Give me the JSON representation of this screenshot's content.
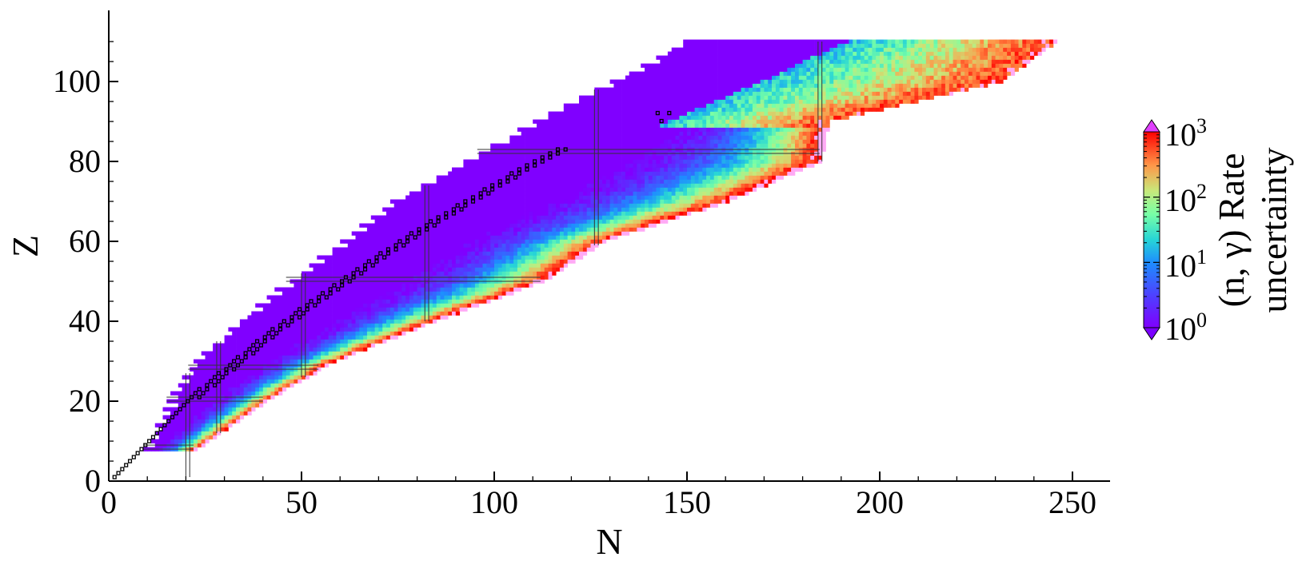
{
  "chart_data": {
    "type": "heatmap",
    "title": "",
    "xlabel": "N",
    "ylabel": "Z",
    "xlim": [
      0,
      260
    ],
    "ylim": [
      0,
      113
    ],
    "xticks": [
      0,
      50,
      100,
      150,
      200,
      250
    ],
    "yticks": [
      0,
      20,
      40,
      60,
      80,
      100
    ],
    "x_tick_labels": [
      "0",
      "50",
      "100",
      "150",
      "200",
      "250"
    ],
    "y_tick_labels": [
      "0",
      "20",
      "40",
      "60",
      "80",
      "100"
    ],
    "colorbar": {
      "label_line1": "(n, γ) Rate",
      "label_line2": "uncertainty",
      "scale": "log",
      "range": [
        1,
        1000
      ],
      "tick_labels": [
        "10",
        "0",
        "10",
        "1",
        "10",
        "2",
        "10",
        "3"
      ],
      "ticks": [
        1,
        10,
        100,
        1000
      ],
      "over_color": "#e040ff",
      "under_color": "#7a00ff",
      "colormap": "rainbow"
    },
    "colors": {
      "low": "#8000ff",
      "mid": "#26d4d8",
      "high": "#ff0000",
      "outside_range": "#ffaaf5"
    },
    "magic_numbers": [
      8,
      20,
      28,
      50,
      82,
      126,
      184
    ],
    "nuclear_landscape": {
      "boundary_rows": [
        {
          "Z": 8,
          "N_min": 9,
          "N_max": 22
        },
        {
          "Z": 20,
          "N_min": 15,
          "N_max": 40
        },
        {
          "Z": 30,
          "N_min": 22,
          "N_max": 58
        },
        {
          "Z": 40,
          "N_min": 33,
          "N_max": 84
        },
        {
          "Z": 50,
          "N_min": 46,
          "N_max": 112
        },
        {
          "Z": 60,
          "N_min": 60,
          "N_max": 128
        },
        {
          "Z": 70,
          "N_min": 73,
          "N_max": 160
        },
        {
          "Z": 80,
          "N_min": 92,
          "N_max": 184
        },
        {
          "Z": 90,
          "N_min": 110,
          "N_max": 186
        },
        {
          "Z": 100,
          "N_min": 130,
          "N_max": 231
        },
        {
          "Z": 110,
          "N_min": 149,
          "N_max": 245
        }
      ],
      "uncertainty_regions": [
        {
          "description": "proton-rich side and valley of stability",
          "uncertainty": 1
        },
        {
          "description": "neutron-rich side near magic shells",
          "uncertainty": 10
        },
        {
          "description": "far neutron-rich edges",
          "uncertainty": 300
        },
        {
          "description": "beyond colour range at drip line",
          "uncertainty": 2000
        }
      ]
    },
    "stable_isotopes_marked": true
  }
}
